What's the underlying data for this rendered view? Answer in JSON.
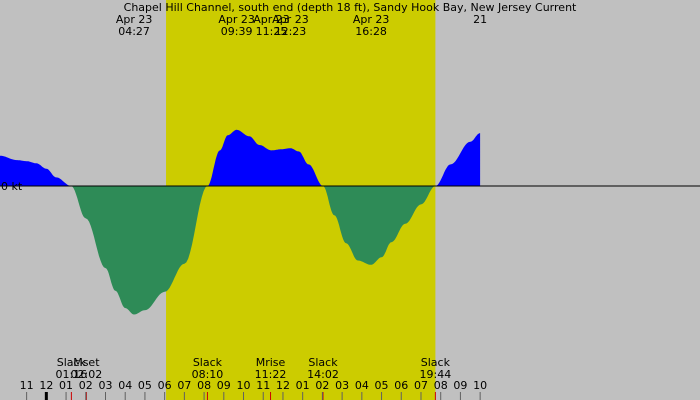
{
  "colors": {
    "night": "#c0c0c0",
    "day": "#cccc00",
    "flood": "#0000ff",
    "ebb": "#2e8b57",
    "text": "#000000",
    "baseline": "#000000",
    "tick_major": "#000000",
    "tick_minor": "#606060",
    "tick_event": "#cc0000"
  },
  "chart_data": {
    "type": "area",
    "title": "Chapel Hill Channel, south end (depth 18 ft), Sandy Hook Bay, New Jersey Current",
    "y_zero_label": "0 kt",
    "xlim_hours": [
      -2.35,
      33.15
    ],
    "ylim_knots": [
      -1.3,
      1.3
    ],
    "daylight_hours": [
      6.07,
      19.73
    ],
    "extrema": [
      {
        "date": "Apr 23",
        "time": "04:27",
        "hour": 4.45,
        "value": -1.19
      },
      {
        "date": "Apr 23",
        "time": "09:39",
        "hour": 9.65,
        "value": 0.52
      },
      {
        "date": "Apr 23",
        "time": "11:25",
        "hour": 11.42,
        "value": 0.33
      },
      {
        "date": "Apr 23",
        "time": "12:23",
        "hour": 12.38,
        "value": 0.35
      },
      {
        "date": "Apr 23",
        "time": "16:28",
        "hour": 16.47,
        "value": -0.73
      },
      {
        "date": "21",
        "time": "",
        "hour": 22.0,
        "value": null
      }
    ],
    "curve": {
      "hours": [
        -2.35,
        -1.5,
        -1.0,
        -0.5,
        0.0,
        0.5,
        1.26,
        2.0,
        3.0,
        3.5,
        4.0,
        4.45,
        5.0,
        6.0,
        7.0,
        8.17,
        8.8,
        9.2,
        9.65,
        10.3,
        10.8,
        11.42,
        11.9,
        12.38,
        12.8,
        13.3,
        14.03,
        14.6,
        15.2,
        15.8,
        16.47,
        17.0,
        17.5,
        18.2,
        19.0,
        19.73,
        20.5,
        21.5,
        22.0
      ],
      "values": [
        0.28,
        0.24,
        0.23,
        0.21,
        0.16,
        0.08,
        0.0,
        -0.3,
        -0.76,
        -0.97,
        -1.13,
        -1.19,
        -1.15,
        -0.98,
        -0.72,
        0.0,
        0.33,
        0.47,
        0.52,
        0.46,
        0.38,
        0.33,
        0.34,
        0.35,
        0.32,
        0.2,
        0.0,
        -0.27,
        -0.53,
        -0.69,
        -0.73,
        -0.66,
        -0.52,
        -0.35,
        -0.17,
        0.0,
        0.2,
        0.41,
        0.49
      ]
    },
    "events": [
      {
        "labels": [
          "Slack",
          "01:16"
        ],
        "hour": 1.27
      },
      {
        "labels": [
          "Mset",
          "02:02"
        ],
        "hour": 2.03
      },
      {
        "labels": [
          "Slack",
          "08:10"
        ],
        "hour": 8.17
      },
      {
        "labels": [
          "Mrise",
          "11:22"
        ],
        "hour": 11.37
      },
      {
        "labels": [
          "Slack",
          "14:02"
        ],
        "hour": 14.03
      },
      {
        "labels": [
          "Slack",
          "19:44"
        ],
        "hour": 19.73
      }
    ],
    "hour_labels": [
      {
        "text": "11",
        "hour": -1
      },
      {
        "text": "12",
        "hour": 0
      },
      {
        "text": "01",
        "hour": 1
      },
      {
        "text": "02",
        "hour": 2
      },
      {
        "text": "03",
        "hour": 3
      },
      {
        "text": "04",
        "hour": 4
      },
      {
        "text": "05",
        "hour": 5
      },
      {
        "text": "06",
        "hour": 6
      },
      {
        "text": "07",
        "hour": 7
      },
      {
        "text": "08",
        "hour": 8
      },
      {
        "text": "09",
        "hour": 9
      },
      {
        "text": "10",
        "hour": 10
      },
      {
        "text": "11",
        "hour": 11
      },
      {
        "text": "12",
        "hour": 12
      },
      {
        "text": "01",
        "hour": 13
      },
      {
        "text": "02",
        "hour": 14
      },
      {
        "text": "03",
        "hour": 15
      },
      {
        "text": "04",
        "hour": 16
      },
      {
        "text": "05",
        "hour": 17
      },
      {
        "text": "06",
        "hour": 18
      },
      {
        "text": "07",
        "hour": 19
      },
      {
        "text": "08",
        "hour": 20
      },
      {
        "text": "09",
        "hour": 21
      },
      {
        "text": "10",
        "hour": 22
      }
    ]
  }
}
